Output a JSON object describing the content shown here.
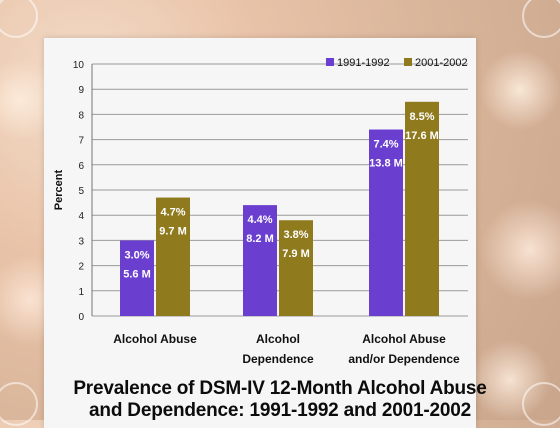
{
  "chart_data": {
    "type": "bar",
    "title": "Prevalence of DSM-IV 12-Month Alcohol Abuse and Dependence: 1991-1992 and 2001-2002",
    "title_lines": [
      "Prevalence of DSM-IV 12-Month Alcohol Abuse",
      "and Dependence: 1991-1992 and 2001-2002"
    ],
    "ylabel": "Percent",
    "xlabel": "",
    "ylim": [
      0,
      10
    ],
    "yticks": [
      0,
      1,
      2,
      3,
      4,
      5,
      6,
      7,
      8,
      9,
      10
    ],
    "grid": true,
    "legend_position": "top-right",
    "categories": [
      [
        "Alcohol Abuse"
      ],
      [
        "Alcohol",
        "Dependence"
      ],
      [
        "Alcohol Abuse",
        "and/or Dependence"
      ]
    ],
    "series": [
      {
        "name": "1991-1992",
        "color": "#6a3fd0",
        "values": [
          3.0,
          4.4,
          7.4
        ],
        "labels": [
          [
            "3.0%",
            "5.6 M"
          ],
          [
            "4.4%",
            "8.2 M"
          ],
          [
            "7.4%",
            "13.8 M"
          ]
        ]
      },
      {
        "name": "2001-2002",
        "color": "#8f7a1e",
        "values": [
          4.7,
          3.8,
          8.5
        ],
        "labels": [
          [
            "4.7%",
            "9.7 M"
          ],
          [
            "3.8%",
            "7.9 M"
          ],
          [
            "8.5%",
            "17.6 M"
          ]
        ]
      }
    ]
  }
}
